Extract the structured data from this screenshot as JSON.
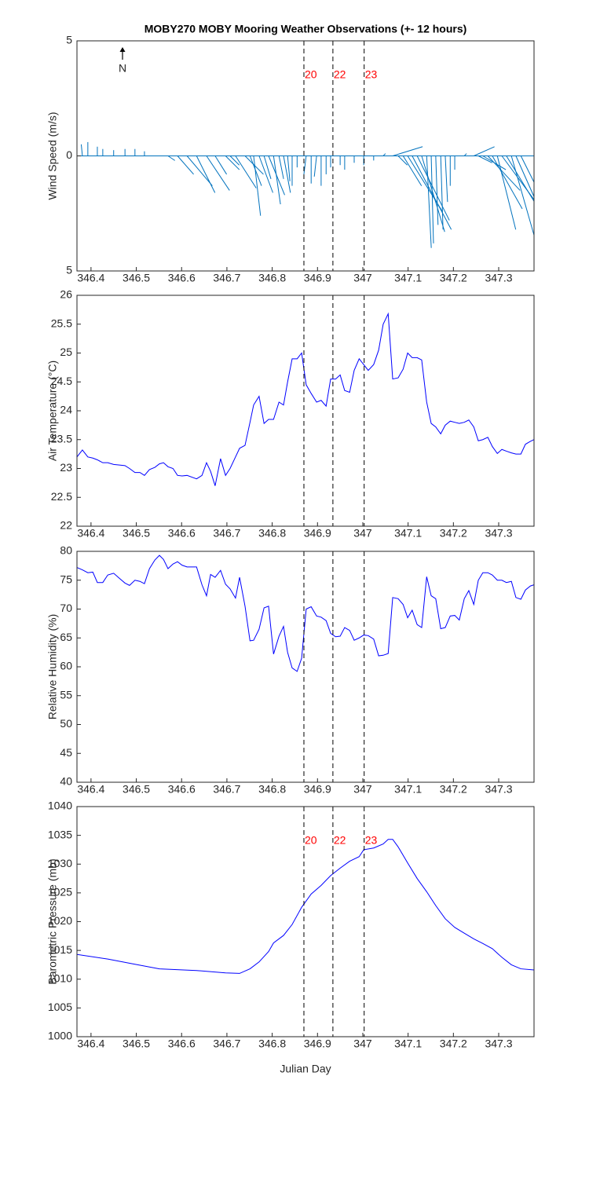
{
  "chart_data": [
    {
      "type": "stick",
      "title": "MOBY270 MOBY Mooring Weather Observations (+- 12 hours)",
      "ylabel": "Wind Speed (m/s)",
      "north_label": "N",
      "color": "#0072bd",
      "xlim": [
        346.369,
        347.378
      ],
      "xticks": [
        346.4,
        346.5,
        346.6,
        346.7,
        346.8,
        346.9,
        347,
        347.1,
        347.2,
        347.3
      ],
      "ylim": [
        -5,
        5
      ],
      "yticks": [
        {
          "value": -5,
          "label": "5"
        },
        0,
        {
          "value": 5,
          "label": "5"
        }
      ],
      "vlines": [
        346.87,
        346.934,
        347.003
      ],
      "vline_labels": [
        "20",
        "22",
        "23"
      ],
      "vline_color": "#ff0000",
      "x": [
        346.381,
        346.393,
        346.414,
        346.426,
        346.45,
        346.475,
        346.497,
        346.518,
        346.57,
        346.591,
        346.612,
        346.633,
        346.655,
        346.674,
        346.697,
        346.707,
        346.719,
        346.74,
        346.751,
        346.759,
        346.771,
        346.782,
        346.792,
        346.803,
        346.815,
        346.825,
        346.834,
        346.844,
        346.855,
        346.875,
        346.886,
        346.898,
        346.908,
        346.919,
        346.929,
        346.95,
        346.96,
        346.981,
        347.002,
        347.024,
        347.045,
        347.066,
        347.078,
        347.089,
        347.099,
        347.109,
        347.12,
        347.13,
        347.141,
        347.151,
        347.161,
        347.172,
        347.182,
        347.193,
        347.203,
        347.224,
        347.245,
        347.255,
        347.265,
        347.276,
        347.286,
        347.297,
        347.307,
        347.317,
        347.328,
        347.338,
        347.349
      ],
      "u": [
        -0.05,
        0,
        0,
        0,
        0,
        0,
        0,
        0,
        0.3,
        0.7,
        1.1,
        0.8,
        1.0,
        0.5,
        0.6,
        0.4,
        0.9,
        0.8,
        0.5,
        0.3,
        0.6,
        0.3,
        0.7,
        0.3,
        0.2,
        0.3,
        0.1,
        0,
        0,
        -0.1,
        0,
        -0.1,
        0,
        0,
        0,
        0,
        0,
        0,
        0,
        0,
        0.1,
        1.3,
        0.4,
        0.8,
        1.5,
        1.7,
        1.4,
        1.0,
        0.2,
        0.1,
        0.1,
        0.1,
        0.1,
        0,
        0,
        0.1,
        0.9,
        0.6,
        1.0,
        1.4,
        1.3,
        0.8,
        1.4,
        1.4,
        1.0,
        0.8,
        0.6
      ],
      "v": [
        0.5,
        0.6,
        0.4,
        0.3,
        0.25,
        0.3,
        0.3,
        0.2,
        -0.2,
        -0.8,
        -1.3,
        -1.6,
        -1.5,
        -0.8,
        -0.6,
        -0.4,
        -1.4,
        -0.8,
        -1.3,
        -2.6,
        -1.6,
        -1.0,
        -1.7,
        -2.1,
        -1.0,
        -1.6,
        -1.1,
        -1.3,
        -0.5,
        -0.8,
        -1.2,
        -0.9,
        -1.3,
        -0.8,
        -0.5,
        -0.4,
        -0.6,
        -0.3,
        -0.4,
        -0.2,
        0.1,
        0.4,
        -0.4,
        -1.3,
        -2.4,
        -3.2,
        -2.8,
        -3.3,
        -4.0,
        -3.8,
        -3.0,
        -3.2,
        -2.0,
        -1.3,
        -0.6,
        0.1,
        0.4,
        -0.3,
        -0.6,
        -1.5,
        -2.3,
        -3.2,
        -1.9,
        -2.3,
        -3.5,
        -1.8,
        -1.2
      ]
    },
    {
      "type": "line",
      "ylabel": "Air Temperature (°C)",
      "xlim": [
        346.369,
        347.378
      ],
      "xticks": [
        346.4,
        346.5,
        346.6,
        346.7,
        346.8,
        346.9,
        347,
        347.1,
        347.2,
        347.3
      ],
      "ylim": [
        22,
        26
      ],
      "yticks": [
        22,
        22.5,
        23,
        23.5,
        24,
        24.5,
        25,
        25.5,
        26
      ],
      "vlines": [
        346.87,
        346.934,
        347.003
      ],
      "x": [
        346.369,
        346.381,
        346.393,
        346.404,
        346.414,
        346.426,
        346.437,
        346.45,
        346.463,
        346.475,
        346.485,
        346.497,
        346.508,
        346.518,
        346.529,
        346.541,
        346.551,
        346.56,
        346.57,
        346.581,
        346.591,
        346.601,
        346.612,
        346.633,
        346.645,
        346.655,
        346.664,
        346.674,
        346.686,
        346.697,
        346.707,
        346.719,
        346.728,
        346.74,
        346.751,
        346.759,
        346.771,
        346.782,
        346.792,
        346.803,
        346.815,
        346.825,
        346.834,
        346.844,
        346.855,
        346.865,
        346.875,
        346.886,
        346.898,
        346.908,
        346.919,
        346.929,
        346.94,
        346.95,
        346.96,
        346.971,
        346.981,
        346.992,
        347.002,
        347.012,
        347.024,
        347.035,
        347.045,
        347.056,
        347.066,
        347.078,
        347.089,
        347.099,
        347.109,
        347.12,
        347.13,
        347.141,
        347.151,
        347.161,
        347.172,
        347.182,
        347.193,
        347.203,
        347.213,
        347.224,
        347.234,
        347.245,
        347.255,
        347.265,
        347.276,
        347.286,
        347.297,
        347.307,
        347.317,
        347.328,
        347.338,
        347.349,
        347.359,
        347.37,
        347.378
      ],
      "series": [
        {
          "color": "#0000ff",
          "values": [
            23.2,
            23.32,
            23.2,
            23.18,
            23.15,
            23.1,
            23.1,
            23.07,
            23.06,
            23.05,
            23.0,
            22.93,
            22.93,
            22.88,
            22.98,
            23.02,
            23.08,
            23.1,
            23.03,
            23.0,
            22.88,
            22.87,
            22.88,
            22.82,
            22.88,
            23.1,
            22.95,
            22.7,
            23.17,
            22.88,
            23.0,
            23.2,
            23.35,
            23.4,
            23.8,
            24.1,
            24.25,
            23.78,
            23.85,
            23.85,
            24.15,
            24.1,
            24.5,
            24.9,
            24.9,
            25.0,
            24.45,
            24.3,
            24.15,
            24.18,
            24.08,
            24.55,
            24.55,
            24.62,
            24.35,
            24.32,
            24.7,
            24.9,
            24.8,
            24.7,
            24.8,
            25.05,
            25.5,
            25.68,
            24.55,
            24.57,
            24.72,
            25.0,
            24.92,
            24.92,
            24.88,
            24.15,
            23.78,
            23.72,
            23.6,
            23.75,
            23.82,
            23.8,
            23.78,
            23.8,
            23.84,
            23.72,
            23.48,
            23.5,
            23.54,
            23.38,
            23.26,
            23.33,
            23.3,
            23.27,
            23.25,
            23.25,
            23.42,
            23.47,
            23.5
          ]
        }
      ]
    },
    {
      "type": "line",
      "ylabel": "Relative Humidity (%)",
      "xlim": [
        346.369,
        347.378
      ],
      "xticks": [
        346.4,
        346.5,
        346.6,
        346.7,
        346.8,
        346.9,
        347,
        347.1,
        347.2,
        347.3
      ],
      "ylim": [
        40,
        80
      ],
      "yticks": [
        40,
        45,
        50,
        55,
        60,
        65,
        70,
        75,
        80
      ],
      "vlines": [
        346.87,
        346.934,
        347.003
      ],
      "x": [
        346.369,
        346.381,
        346.393,
        346.404,
        346.414,
        346.426,
        346.437,
        346.45,
        346.463,
        346.475,
        346.485,
        346.497,
        346.508,
        346.518,
        346.529,
        346.541,
        346.551,
        346.56,
        346.57,
        346.581,
        346.591,
        346.601,
        346.612,
        346.633,
        346.645,
        346.655,
        346.664,
        346.674,
        346.686,
        346.697,
        346.707,
        346.719,
        346.728,
        346.74,
        346.751,
        346.759,
        346.771,
        346.782,
        346.792,
        346.803,
        346.815,
        346.825,
        346.834,
        346.844,
        346.855,
        346.865,
        346.875,
        346.886,
        346.898,
        346.908,
        346.919,
        346.929,
        346.94,
        346.95,
        346.96,
        346.971,
        346.981,
        346.992,
        347.002,
        347.012,
        347.024,
        347.035,
        347.045,
        347.056,
        347.066,
        347.078,
        347.089,
        347.099,
        347.109,
        347.12,
        347.13,
        347.141,
        347.151,
        347.161,
        347.172,
        347.182,
        347.193,
        347.203,
        347.213,
        347.224,
        347.234,
        347.245,
        347.255,
        347.265,
        347.276,
        347.286,
        347.297,
        347.307,
        347.317,
        347.328,
        347.338,
        347.349,
        347.359,
        347.37,
        347.378
      ],
      "series": [
        {
          "color": "#0000ff",
          "values": [
            77.2,
            76.8,
            76.3,
            76.4,
            74.6,
            74.6,
            75.9,
            76.2,
            75.3,
            74.5,
            74.1,
            75.0,
            74.8,
            74.4,
            77.0,
            78.5,
            79.3,
            78.6,
            77.0,
            77.8,
            78.2,
            77.6,
            77.3,
            77.3,
            74.2,
            72.3,
            76.0,
            75.5,
            76.7,
            74.3,
            73.5,
            71.9,
            75.5,
            70.5,
            64.5,
            64.6,
            66.5,
            70.2,
            70.5,
            62.2,
            65.3,
            67.0,
            62.5,
            59.8,
            59.2,
            61.5,
            70.0,
            70.4,
            68.8,
            68.6,
            68.0,
            65.8,
            65.2,
            65.3,
            66.8,
            66.3,
            64.6,
            65.0,
            65.5,
            65.4,
            64.8,
            61.9,
            62.0,
            62.3,
            72.0,
            71.8,
            70.8,
            68.5,
            69.8,
            67.3,
            66.8,
            75.6,
            72.3,
            71.8,
            66.6,
            66.8,
            68.8,
            68.9,
            68.1,
            71.8,
            73.2,
            70.8,
            75.0,
            76.3,
            76.3,
            75.9,
            75.0,
            75.0,
            74.6,
            74.8,
            72.0,
            71.7,
            73.3,
            74.0,
            74.2
          ]
        }
      ]
    },
    {
      "type": "line",
      "ylabel": "Barometric Pressure (mb)",
      "xlabel": "Julian Day",
      "xlim": [
        346.369,
        347.378
      ],
      "xticks": [
        346.4,
        346.5,
        346.6,
        346.7,
        346.8,
        346.9,
        347,
        347.1,
        347.2,
        347.3
      ],
      "ylim": [
        1000,
        1040
      ],
      "yticks": [
        1000,
        1005,
        1010,
        1015,
        1020,
        1025,
        1030,
        1035,
        1040
      ],
      "vlines": [
        346.87,
        346.934,
        347.003
      ],
      "vline_labels": [
        "20",
        "22",
        "23"
      ],
      "vline_color": "#ff0000",
      "x": [
        346.369,
        346.437,
        346.497,
        346.551,
        346.633,
        346.697,
        346.728,
        346.751,
        346.771,
        346.792,
        346.803,
        346.825,
        346.844,
        346.865,
        346.886,
        346.908,
        346.929,
        346.95,
        346.971,
        346.992,
        347.002,
        347.024,
        347.045,
        347.056,
        347.066,
        347.078,
        347.099,
        347.12,
        347.141,
        347.161,
        347.182,
        347.203,
        347.224,
        347.245,
        347.265,
        347.286,
        347.307,
        347.328,
        347.349,
        347.378
      ],
      "series": [
        {
          "color": "#0000ff",
          "values": [
            1014.3,
            1013.5,
            1012.6,
            1011.8,
            1011.5,
            1011.1,
            1011.0,
            1011.8,
            1013.0,
            1014.8,
            1016.3,
            1017.6,
            1019.5,
            1022.5,
            1024.8,
            1026.3,
            1028.0,
            1029.3,
            1030.5,
            1031.3,
            1032.5,
            1032.8,
            1033.5,
            1034.3,
            1034.3,
            1033.0,
            1030.2,
            1027.5,
            1025.2,
            1022.8,
            1020.5,
            1019.0,
            1018.0,
            1017.0,
            1016.2,
            1015.3,
            1013.8,
            1012.5,
            1011.8,
            1011.6
          ]
        }
      ]
    }
  ]
}
